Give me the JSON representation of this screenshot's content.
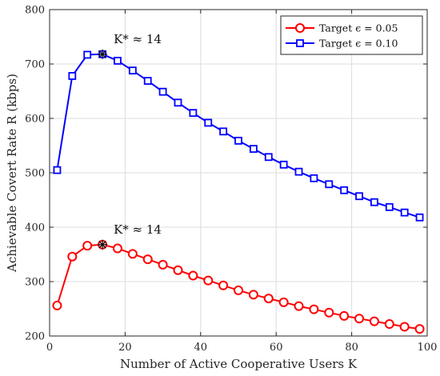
{
  "chart_data": {
    "type": "line",
    "xlabel": "Number of Active Cooperative Users K",
    "ylabel": "Achievable Covert Rate R (kbps)",
    "xlim": [
      0,
      100
    ],
    "ylim": [
      200,
      800
    ],
    "xticks": [
      0,
      20,
      40,
      60,
      80,
      100
    ],
    "yticks": [
      200,
      300,
      400,
      500,
      600,
      700,
      800
    ],
    "grid": true,
    "legend_position": "top-right",
    "x": [
      2,
      6,
      10,
      14,
      18,
      22,
      26,
      30,
      34,
      38,
      42,
      46,
      50,
      54,
      58,
      62,
      66,
      70,
      74,
      78,
      82,
      86,
      90,
      94,
      98
    ],
    "series": [
      {
        "name": "Target ϵ = 0.05",
        "color": "#ff0000",
        "marker": "circle",
        "values": [
          256,
          346,
          366,
          368,
          361,
          351,
          341,
          331,
          321,
          311,
          302,
          293,
          284,
          276,
          269,
          262,
          255,
          249,
          243,
          237,
          232,
          227,
          222,
          217,
          213
        ],
        "peak": {
          "x": 14,
          "y": 368,
          "label": "K* ≈ 14"
        }
      },
      {
        "name": "Target ϵ = 0.10",
        "color": "#0000ff",
        "marker": "square",
        "values": [
          505,
          678,
          717,
          718,
          706,
          688,
          669,
          649,
          629,
          610,
          592,
          576,
          559,
          544,
          529,
          515,
          502,
          490,
          479,
          468,
          457,
          446,
          437,
          427,
          418
        ],
        "peak": {
          "x": 14,
          "y": 718,
          "label": "K* ≈ 14"
        }
      }
    ]
  }
}
